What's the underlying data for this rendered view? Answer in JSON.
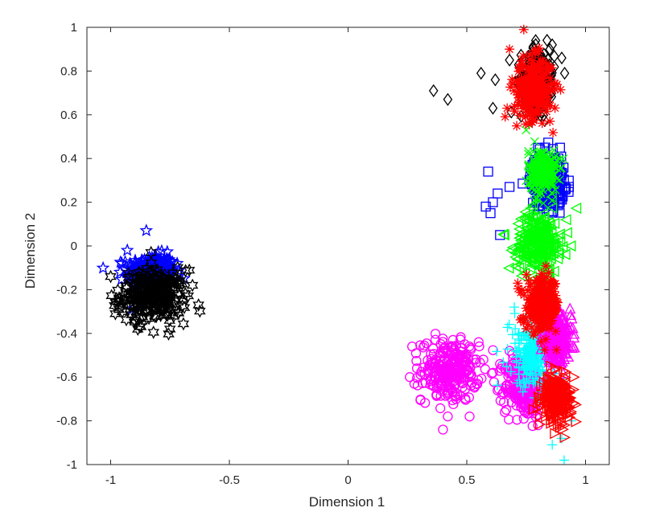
{
  "chart_data": {
    "type": "scatter",
    "xlabel": "Dimension 1",
    "ylabel": "Dimension 2",
    "xlim": [
      -1.1,
      1.1
    ],
    "ylim": [
      -1,
      1
    ],
    "xticks": [
      -1,
      -0.5,
      0,
      0.5,
      1
    ],
    "xtick_labels": [
      "-1",
      "-0.5",
      "0",
      "0.5",
      "1"
    ],
    "yticks": [
      -1,
      -0.8,
      -0.6,
      -0.4,
      -0.2,
      0,
      0.2,
      0.4,
      0.6,
      0.8,
      1
    ],
    "ytick_labels": [
      "-1",
      "-0.8",
      "-0.6",
      "-0.4",
      "-0.2",
      "0",
      "0.2",
      "0.4",
      "0.6",
      "0.8",
      "1"
    ],
    "grid": false,
    "legend": "none",
    "series": [
      {
        "marker": "pentagram",
        "color": "#0000ff",
        "center": [
          -0.83,
          -0.12
        ],
        "spread": [
          0.05,
          0.04
        ],
        "extra_points": [
          [
            -0.85,
            0.07
          ],
          [
            -0.93,
            -0.02
          ],
          [
            -0.72,
            -0.08
          ],
          [
            -0.96,
            -0.12
          ]
        ]
      },
      {
        "marker": "hexagram",
        "color": "#000000",
        "center": [
          -0.82,
          -0.23
        ],
        "spread": [
          0.07,
          0.06
        ],
        "extra_points": [
          [
            -1.0,
            -0.14
          ],
          [
            -0.63,
            -0.27
          ],
          [
            -0.98,
            -0.31
          ],
          [
            -0.75,
            -0.38
          ],
          [
            -0.9,
            -0.34
          ],
          [
            -0.83,
            -0.03
          ]
        ]
      },
      {
        "marker": "circle",
        "color": "#ff00ff",
        "center": [
          0.43,
          -0.57
        ],
        "spread": [
          0.06,
          0.07
        ],
        "extra_points": [
          [
            0.27,
            -0.46
          ],
          [
            0.26,
            -0.6
          ],
          [
            0.29,
            -0.56
          ],
          [
            0.42,
            -0.78
          ],
          [
            0.55,
            -0.44
          ],
          [
            0.57,
            -0.52
          ]
        ]
      },
      {
        "marker": "circle",
        "color": "#ff00ff",
        "center": [
          0.74,
          -0.64
        ],
        "spread": [
          0.04,
          0.07
        ],
        "extra_points": [
          [
            0.66,
            -0.76
          ],
          [
            0.68,
            -0.48
          ],
          [
            0.74,
            -0.79
          ],
          [
            0.8,
            -0.82
          ],
          [
            0.64,
            -0.54
          ]
        ]
      },
      {
        "marker": "diamond",
        "color": "#000000",
        "center": [
          0.8,
          0.76
        ],
        "spread": [
          0.035,
          0.07
        ],
        "extra_points": [
          [
            0.36,
            0.71
          ],
          [
            0.42,
            0.67
          ],
          [
            0.56,
            0.79
          ],
          [
            0.62,
            0.76
          ],
          [
            0.61,
            0.63
          ],
          [
            0.68,
            0.85
          ],
          [
            0.9,
            0.86
          ],
          [
            0.86,
            0.92
          ],
          [
            0.79,
            0.94
          ]
        ]
      },
      {
        "marker": "asterisk",
        "color": "#ff0000",
        "center": [
          0.78,
          0.72
        ],
        "spread": [
          0.04,
          0.07
        ],
        "extra_points": [
          [
            0.74,
            0.99
          ],
          [
            0.67,
            0.63
          ],
          [
            0.68,
            0.9
          ],
          [
            0.85,
            0.57
          ]
        ]
      },
      {
        "marker": "square",
        "color": "#0000ff",
        "center": [
          0.84,
          0.3
        ],
        "spread": [
          0.035,
          0.06
        ],
        "extra_points": [
          [
            0.59,
            0.34
          ],
          [
            0.58,
            0.18
          ],
          [
            0.6,
            0.15
          ],
          [
            0.61,
            0.2
          ],
          [
            0.63,
            0.24
          ],
          [
            0.64,
            0.05
          ],
          [
            0.68,
            0.27
          ],
          [
            0.93,
            0.27
          ],
          [
            0.83,
            0.45
          ]
        ]
      },
      {
        "marker": "x",
        "color": "#00ff00",
        "center": [
          0.82,
          0.34
        ],
        "spread": [
          0.03,
          0.05
        ],
        "extra_points": [
          [
            0.76,
            0.42
          ],
          [
            0.75,
            0.53
          ]
        ]
      },
      {
        "marker": "triangle-left",
        "color": "#00ff00",
        "center": [
          0.8,
          0.02
        ],
        "spread": [
          0.045,
          0.07
        ],
        "extra_points": [
          [
            0.66,
            0.05
          ],
          [
            0.69,
            -0.02
          ],
          [
            0.94,
            0.0
          ],
          [
            0.92,
            0.12
          ]
        ]
      },
      {
        "marker": "plus",
        "color": "#00ffff",
        "center": [
          0.78,
          -0.5
        ],
        "spread": [
          0.05,
          0.08
        ],
        "extra_points": [
          [
            0.94,
            -0.8
          ],
          [
            0.91,
            -0.98
          ],
          [
            0.9,
            -0.88
          ],
          [
            0.86,
            -0.91
          ],
          [
            0.72,
            -0.4
          ],
          [
            0.7,
            -0.28
          ]
        ]
      },
      {
        "marker": "triangle-up",
        "color": "#ff00ff",
        "center": [
          0.88,
          -0.43
        ],
        "spread": [
          0.03,
          0.05
        ],
        "extra_points": [
          [
            0.92,
            -0.42
          ],
          [
            0.9,
            -0.36
          ]
        ]
      },
      {
        "marker": "asterisk",
        "color": "#ff0000",
        "center": [
          0.82,
          -0.27
        ],
        "spread": [
          0.035,
          0.06
        ],
        "extra_points": [
          [
            0.86,
            -0.17
          ],
          [
            0.74,
            -0.35
          ]
        ]
      },
      {
        "marker": "triangle-right",
        "color": "#ff0000",
        "center": [
          0.88,
          -0.7
        ],
        "spread": [
          0.03,
          0.05
        ],
        "extra_points": [
          [
            0.95,
            -0.6
          ],
          [
            0.89,
            -0.82
          ],
          [
            0.84,
            -0.63
          ]
        ]
      }
    ]
  }
}
